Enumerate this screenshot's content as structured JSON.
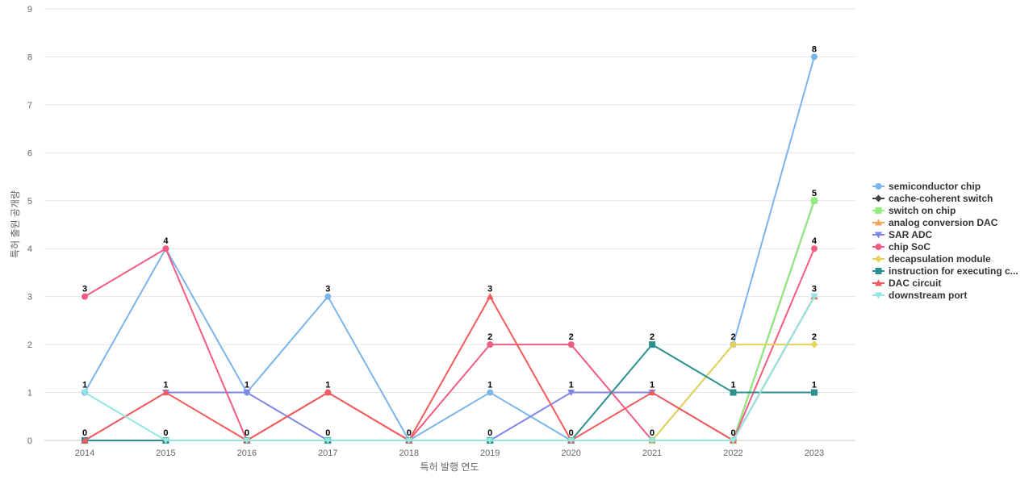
{
  "chart_data": {
    "type": "line",
    "title": "",
    "xlabel": "특허 발행 연도",
    "ylabel": "특허 출원 공개량",
    "x": [
      "2014",
      "2015",
      "2016",
      "2017",
      "2018",
      "2019",
      "2020",
      "2021",
      "2022",
      "2023"
    ],
    "ylim": [
      0,
      9
    ],
    "yticks": [
      0,
      1,
      2,
      3,
      4,
      5,
      6,
      7,
      8,
      9
    ],
    "grid": true,
    "legend_position": "right",
    "series": [
      {
        "name": "semiconductor chip",
        "values": [
          1,
          4,
          1,
          3,
          0,
          1,
          0,
          0,
          2,
          8
        ],
        "color": "#7cb5ec",
        "marker": "circle"
      },
      {
        "name": "cache-coherent switch",
        "values": [
          0,
          0,
          0,
          0,
          0,
          0,
          0,
          0,
          0,
          5
        ],
        "color": "#434348",
        "marker": "diamond"
      },
      {
        "name": "switch on chip",
        "values": [
          0,
          0,
          0,
          0,
          0,
          0,
          0,
          0,
          0,
          5
        ],
        "color": "#90ed7d",
        "marker": "square"
      },
      {
        "name": "analog conversion DAC",
        "values": [
          0,
          0,
          0,
          0,
          0,
          0,
          0,
          0,
          0,
          3
        ],
        "color": "#f7a35c",
        "marker": "triangle"
      },
      {
        "name": "SAR ADC",
        "values": [
          0,
          1,
          1,
          0,
          0,
          0,
          1,
          1,
          0,
          3
        ],
        "color": "#8085e9",
        "marker": "triangle-down"
      },
      {
        "name": "chip SoC",
        "values": [
          3,
          4,
          0,
          1,
          0,
          2,
          2,
          0,
          0,
          4
        ],
        "color": "#f15c80",
        "marker": "circle"
      },
      {
        "name": "decapsulation module",
        "values": [
          0,
          0,
          0,
          0,
          0,
          0,
          0,
          0,
          2,
          2
        ],
        "color": "#e4d354",
        "marker": "diamond"
      },
      {
        "name": "instruction for executing c...",
        "values": [
          0,
          0,
          0,
          0,
          0,
          0,
          0,
          2,
          1,
          1
        ],
        "color": "#2b908f",
        "marker": "square"
      },
      {
        "name": "DAC circuit",
        "values": [
          0,
          1,
          0,
          1,
          0,
          3,
          0,
          1,
          0,
          3
        ],
        "color": "#f45b5b",
        "marker": "triangle"
      },
      {
        "name": "downstream port",
        "values": [
          1,
          0,
          0,
          0,
          0,
          0,
          0,
          0,
          0,
          3
        ],
        "color": "#91e8e1",
        "marker": "triangle-down"
      }
    ],
    "data_labels": [
      {
        "x": "2014",
        "value": 3
      },
      {
        "x": "2014",
        "value": 1
      },
      {
        "x": "2014",
        "value": 0
      },
      {
        "x": "2015",
        "value": 4
      },
      {
        "x": "2015",
        "value": 1
      },
      {
        "x": "2015",
        "value": 0
      },
      {
        "x": "2016",
        "value": 1
      },
      {
        "x": "2016",
        "value": 0
      },
      {
        "x": "2017",
        "value": 3
      },
      {
        "x": "2017",
        "value": 1
      },
      {
        "x": "2017",
        "value": 0
      },
      {
        "x": "2018",
        "value": 0
      },
      {
        "x": "2019",
        "value": 3
      },
      {
        "x": "2019",
        "value": 2
      },
      {
        "x": "2019",
        "value": 1
      },
      {
        "x": "2019",
        "value": 0
      },
      {
        "x": "2020",
        "value": 2
      },
      {
        "x": "2020",
        "value": 1
      },
      {
        "x": "2020",
        "value": 0
      },
      {
        "x": "2021",
        "value": 2
      },
      {
        "x": "2021",
        "value": 1
      },
      {
        "x": "2021",
        "value": 0
      },
      {
        "x": "2022",
        "value": 2
      },
      {
        "x": "2022",
        "value": 1
      },
      {
        "x": "2022",
        "value": 0
      },
      {
        "x": "2023",
        "value": 8
      },
      {
        "x": "2023",
        "value": 5
      },
      {
        "x": "2023",
        "value": 4
      },
      {
        "x": "2023",
        "value": 3
      },
      {
        "x": "2023",
        "value": 2
      },
      {
        "x": "2023",
        "value": 1
      }
    ]
  }
}
